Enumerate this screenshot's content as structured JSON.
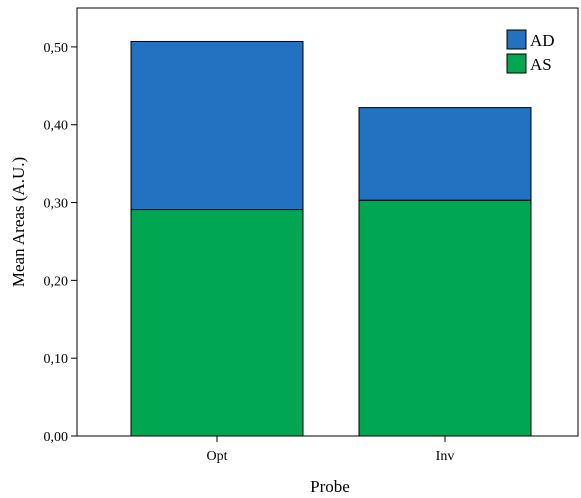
{
  "chart_data": {
    "type": "bar",
    "stacked": true,
    "categories": [
      "Opt",
      "Inv"
    ],
    "series": [
      {
        "name": "AS",
        "values": [
          0.291,
          0.303
        ],
        "color": "#00a651"
      },
      {
        "name": "AD",
        "values": [
          0.216,
          0.119
        ],
        "color": "#2272c1"
      }
    ],
    "xlabel": "Probe",
    "ylabel": "Mean Areas (A.U.)",
    "ylim": [
      0,
      0.55
    ],
    "yticks": [
      0.0,
      0.1,
      0.2,
      0.3,
      0.4,
      0.5
    ],
    "ytick_labels": [
      "0,00",
      "0,10",
      "0,20",
      "0,30",
      "0,40",
      "0,50"
    ],
    "legend": {
      "position": "top-right",
      "entries": [
        "AD",
        "AS"
      ]
    },
    "grid": false
  }
}
